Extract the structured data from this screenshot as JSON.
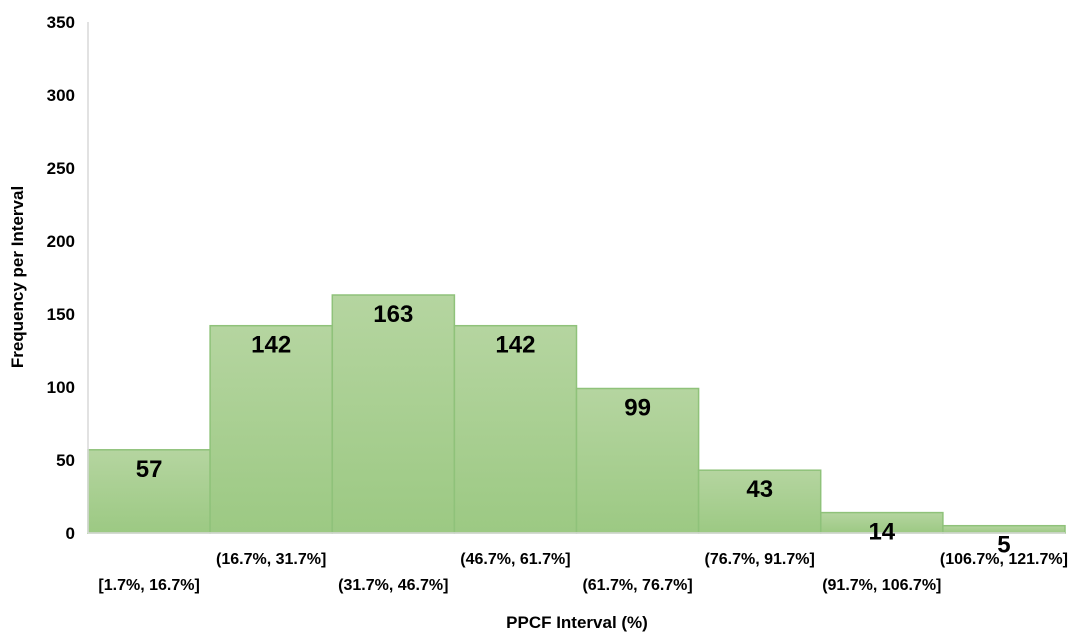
{
  "chart_data": {
    "type": "bar",
    "categories": [
      "[1.7%, 16.7%]",
      "(16.7%, 31.7%]",
      "(31.7%, 46.7%]",
      "(46.7%, 61.7%]",
      "(61.7%, 76.7%]",
      "(76.7%, 91.7%]",
      "(91.7%, 106.7%]",
      "(106.7%, 121.7%]"
    ],
    "values": [
      57,
      142,
      163,
      142,
      99,
      43,
      14,
      5
    ],
    "data_labels": [
      "57",
      "142",
      "163",
      "142",
      "99",
      "43",
      "14",
      "5"
    ],
    "xlabel": "PPCF  Interval (%)",
    "ylabel": "Frequency per Interval",
    "ylim": [
      0,
      350
    ],
    "yticks": [
      0,
      50,
      100,
      150,
      200,
      250,
      300,
      350
    ],
    "grid": false,
    "legend": "none",
    "bar_gap": 0,
    "colors": {
      "bar_top": "#b5d5a0",
      "bar_bottom": "#9cc983",
      "bar_edge": "#8fc27a",
      "axis": "#d9d9d9"
    }
  }
}
